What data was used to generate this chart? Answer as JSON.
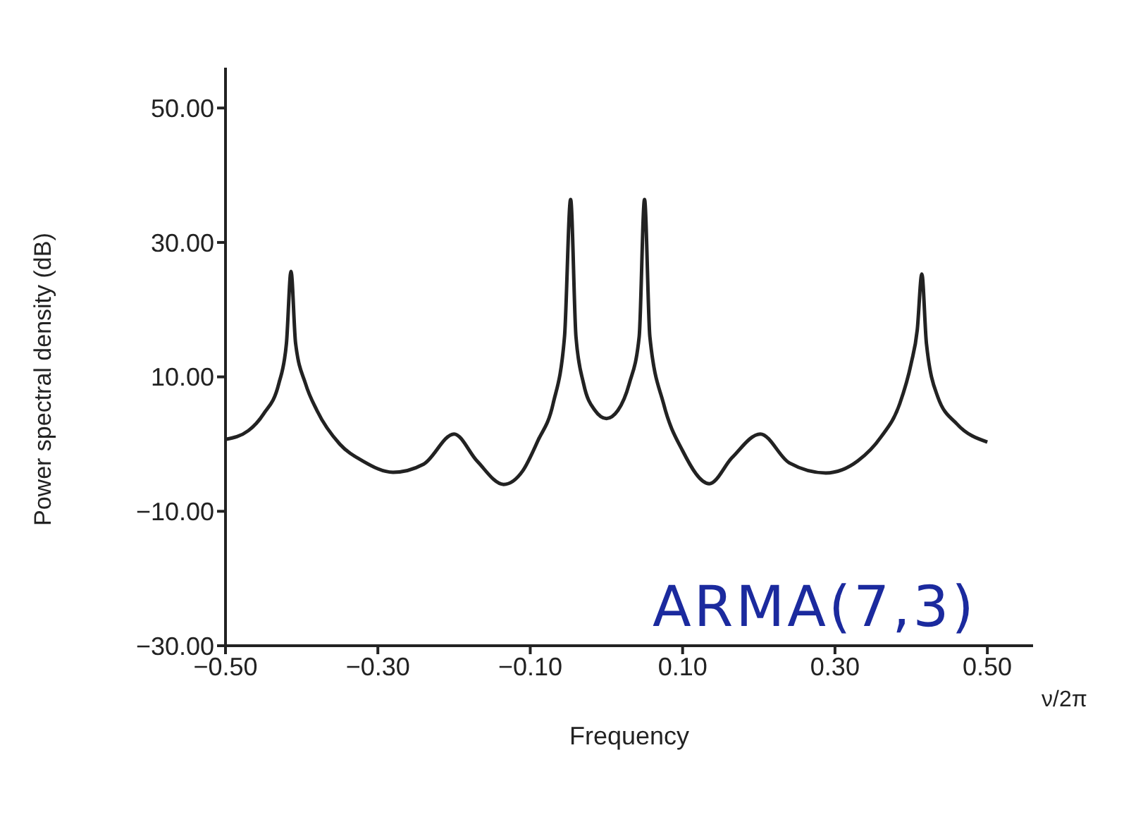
{
  "chart_data": {
    "type": "line",
    "xlabel": "Frequency",
    "ylabel": "Power spectral density (dB)",
    "annotations": [
      "ARMA(7,3)",
      "ν/2π"
    ],
    "x": [
      -0.5,
      -0.47,
      -0.45,
      -0.43,
      -0.42,
      -0.414,
      -0.408,
      -0.395,
      -0.38,
      -0.35,
      -0.32,
      -0.28,
      -0.24,
      -0.2,
      -0.17,
      -0.135,
      -0.11,
      -0.09,
      -0.07,
      -0.055,
      -0.047,
      -0.04,
      -0.03,
      -0.015,
      0,
      0.015,
      0.03,
      0.043,
      0.05,
      0.057,
      0.075,
      0.1,
      0.135,
      0.165,
      0.202,
      0.24,
      0.288,
      0.33,
      0.36,
      0.385,
      0.4,
      0.408,
      0.414,
      0.42,
      0.435,
      0.46,
      0.5
    ],
    "series": [
      {
        "color": "#222222",
        "values": [
          0.7,
          2,
          4.5,
          9,
          15,
          25.7,
          15,
          9,
          5,
          0,
          -2.5,
          -4.2,
          -3,
          1.5,
          -2.5,
          -6,
          -4,
          0.5,
          6,
          16,
          36.4,
          16,
          9,
          5,
          3.8,
          5,
          9,
          16,
          36.4,
          16,
          6,
          -1,
          -5.9,
          -2,
          1.5,
          -2.8,
          -4.3,
          -2.5,
          1,
          6,
          12,
          17,
          25.3,
          15,
          7,
          3,
          0.3
        ]
      }
    ],
    "xlim": [
      -0.5,
      0.56
    ],
    "xticks": [
      {
        "value": -0.5,
        "label": "−0.50"
      },
      {
        "value": -0.3,
        "label": "−0.30"
      },
      {
        "value": -0.1,
        "label": "−0.10"
      },
      {
        "value": 0.1,
        "label": "0.10"
      },
      {
        "value": 0.3,
        "label": "0.30"
      },
      {
        "value": 0.5,
        "label": "0.50"
      }
    ],
    "ylim": [
      -30,
      56
    ],
    "yticks": [
      {
        "value": -30,
        "label": "−30.00"
      },
      {
        "value": -10,
        "label": "−10.00"
      },
      {
        "value": 10,
        "label": "10.00"
      },
      {
        "value": 30,
        "label": "30.00"
      },
      {
        "value": 50,
        "label": "50.00"
      }
    ],
    "grid": false,
    "legend": false,
    "marker": "none",
    "line_style": "solid"
  }
}
